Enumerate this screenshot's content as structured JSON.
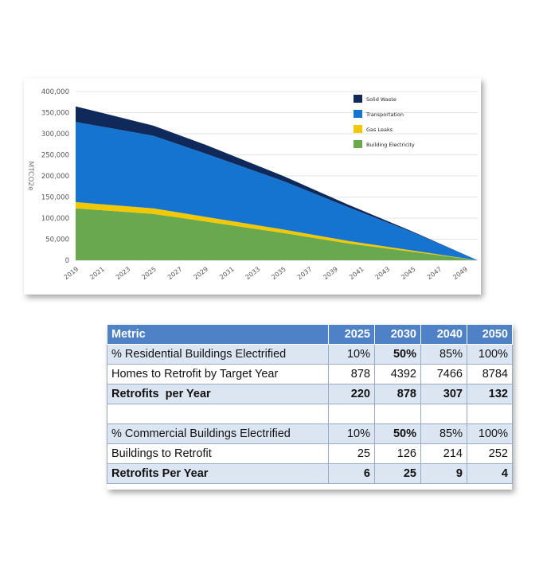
{
  "chart_data": {
    "type": "area",
    "stacked": true,
    "ylabel": "MTCO2e",
    "ylim": [
      0,
      400000
    ],
    "y_ticks": [
      "400,000",
      "350,000",
      "300,000",
      "250,000",
      "200,000",
      "150,000",
      "100,000",
      "50,000",
      "0"
    ],
    "y_tick_values": [
      400000,
      350000,
      300000,
      250000,
      200000,
      150000,
      100000,
      50000,
      0
    ],
    "x_ticks": [
      "2019",
      "2021",
      "2023",
      "2025",
      "2027",
      "2029",
      "2031",
      "2033",
      "2035",
      "2037",
      "2039",
      "2041",
      "2043",
      "2045",
      "2047",
      "2049"
    ],
    "x": [
      2019,
      2025,
      2029,
      2035,
      2040,
      2045,
      2050
    ],
    "series": [
      {
        "name": "Building Electricity",
        "color": "#6aa84f",
        "values": [
          123000,
          110000,
          92000,
          65000,
          40000,
          20000,
          0
        ]
      },
      {
        "name": "Gas Leaks",
        "color": "#f2c800",
        "values": [
          15000,
          13000,
          11000,
          8000,
          6000,
          3000,
          0
        ]
      },
      {
        "name": "Transportation",
        "color": "#1674d1",
        "values": [
          190000,
          172000,
          150000,
          115000,
          80000,
          43000,
          0
        ]
      },
      {
        "name": "Solid Waste",
        "color": "#0f2a5a",
        "values": [
          37000,
          24000,
          21000,
          12000,
          6000,
          2000,
          0
        ]
      }
    ],
    "legend_position": "top-right",
    "grid": true
  },
  "table": {
    "headers": [
      "Metric",
      "2025",
      "2030",
      "2040",
      "2050"
    ],
    "rows": [
      {
        "label": "% Residential Buildings Electrified",
        "values": [
          "10%",
          "50%",
          "85%",
          "100%"
        ]
      },
      {
        "label": "Homes to Retrofit by Target Year",
        "values": [
          "878",
          "4392",
          "7466",
          "8784"
        ]
      },
      {
        "label": "Retrofits  per Year",
        "values": [
          "220",
          "878",
          "307",
          "132"
        ]
      },
      {
        "label": "",
        "values": [
          "",
          "",
          "",
          ""
        ]
      },
      {
        "label": "% Commercial Buildings Electrified",
        "values": [
          "10%",
          "50%",
          "85%",
          "100%"
        ]
      },
      {
        "label": "Buildings to Retrofit",
        "values": [
          "25",
          "126",
          "214",
          "252"
        ]
      },
      {
        "label": "Retrofits Per Year",
        "values": [
          "6",
          "25",
          "9",
          "4"
        ]
      }
    ]
  }
}
